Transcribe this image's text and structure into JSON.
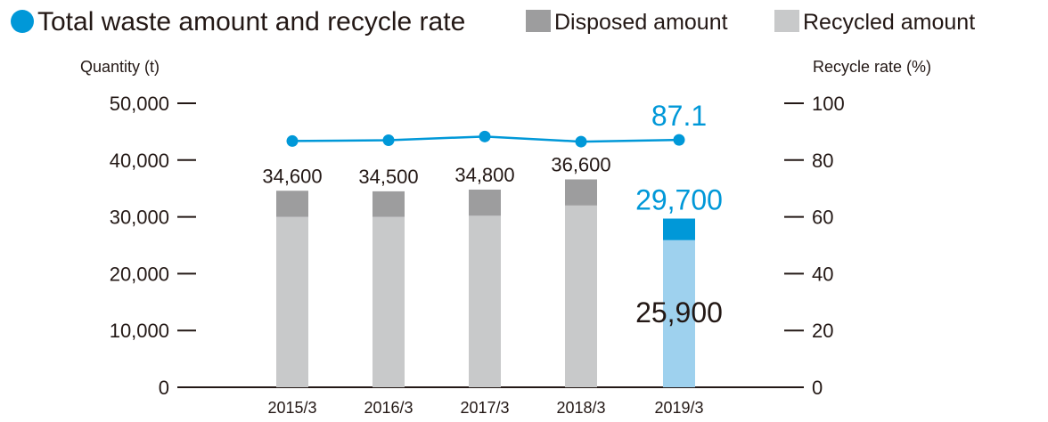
{
  "title": "Total waste amount and recycle rate",
  "colors": {
    "title_dot": "#0098d8",
    "disposed": "#9d9d9e",
    "recycled": "#c8c9ca",
    "hl_disposed": "#0098d8",
    "hl_recycled": "#9ed1ee",
    "line": "#0098d8",
    "axis": "#231815",
    "text": "#231815",
    "highlight_text": "#0098d8"
  },
  "chart_data": {
    "type": "bar",
    "title": "Total waste amount and recycle rate",
    "categories": [
      "2015/3",
      "2016/3",
      "2017/3",
      "2018/3",
      "2019/3"
    ],
    "series": [
      {
        "name": "Recycled amount",
        "values": [
          30000,
          30000,
          30200,
          32000,
          25900
        ],
        "stacked": true
      },
      {
        "name": "Disposed amount",
        "values": [
          4600,
          4500,
          4600,
          4600,
          3800
        ],
        "stacked": true
      },
      {
        "name": "Recycle rate",
        "type": "line",
        "axis": "right",
        "values": [
          86.7,
          87.0,
          88.3,
          86.5,
          87.1
        ]
      }
    ],
    "totals": [
      "34,600",
      "34,500",
      "34,800",
      "36,600",
      "29,700"
    ],
    "highlight": {
      "category": "2019/3",
      "total": "29,700",
      "recycled": "25,900",
      "rate": "87.1"
    },
    "ylabel": "Quantity (t)",
    "ylabel_right": "Recycle rate (%)",
    "ylim": [
      0,
      50000
    ],
    "ylim_right": [
      0,
      100
    ],
    "yticks": [
      "0",
      "10,000",
      "20,000",
      "30,000",
      "40,000",
      "50,000"
    ],
    "yticks_right": [
      "0",
      "20",
      "40",
      "60",
      "80",
      "100"
    ],
    "legend": [
      "Disposed amount",
      "Recycled amount"
    ],
    "legend_position": "top-right",
    "grid": false
  }
}
